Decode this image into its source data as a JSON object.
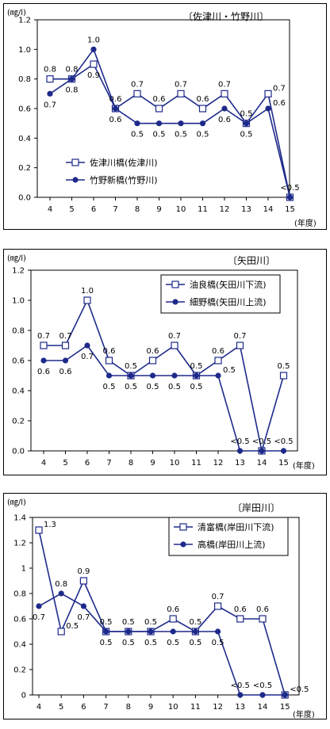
{
  "chart_data": [
    {
      "type": "line",
      "title": "〔佐津川・竹野川〕",
      "ylabel": "(㎎/l)",
      "xlabel": "(年度)",
      "categories": [
        "4",
        "5",
        "6",
        "7",
        "8",
        "9",
        "10",
        "11",
        "12",
        "13",
        "14",
        "15"
      ],
      "y_ticks": [
        "0.0",
        "0.2",
        "0.4",
        "0.6",
        "0.8",
        "1.0",
        "1.2"
      ],
      "ylim": [
        0,
        1.2
      ],
      "legend_position": "left-middle",
      "series": [
        {
          "name": "佐津川橋(佐津川)",
          "marker": "square-open",
          "values": [
            0.8,
            0.8,
            0.9,
            0.6,
            0.7,
            0.6,
            0.7,
            0.6,
            0.7,
            0.5,
            0.7,
            0.0
          ],
          "labels": [
            "0.8",
            "0.8",
            "0.9",
            "0.6",
            "0.7",
            "0.6",
            "0.7",
            "0.6",
            "0.7",
            "0.5",
            "0.7",
            ""
          ],
          "label_pos": [
            "above",
            "above",
            "below",
            "above",
            "above",
            "above",
            "above",
            "above",
            "above",
            "above",
            "right",
            ""
          ]
        },
        {
          "name": "竹野新橋(竹野川)",
          "marker": "circle-filled",
          "values": [
            0.7,
            0.8,
            1.0,
            0.6,
            0.5,
            0.5,
            0.5,
            0.5,
            0.6,
            0.5,
            0.6,
            0.0
          ],
          "labels": [
            "0.7",
            "0.8",
            "1.0",
            "0.6",
            "0.5",
            "0.5",
            "0.5",
            "0.5",
            "0.6",
            "0.5",
            "0.6",
            "<0.5"
          ],
          "label_pos": [
            "below",
            "below",
            "above",
            "below",
            "below",
            "below",
            "below",
            "below",
            "below",
            "below",
            "right",
            "above"
          ]
        }
      ]
    },
    {
      "type": "line",
      "title": "〔矢田川〕",
      "ylabel": "(㎎/l)",
      "xlabel": "(年度)",
      "categories": [
        "4",
        "5",
        "6",
        "7",
        "8",
        "9",
        "10",
        "11",
        "12",
        "13",
        "14",
        "15"
      ],
      "y_ticks": [
        "0.0",
        "0.2",
        "0.4",
        "0.6",
        "0.8",
        "1.0",
        "1.2"
      ],
      "ylim": [
        0,
        1.2
      ],
      "legend_position": "top-right",
      "series": [
        {
          "name": "油良橋(矢田川下流)",
          "marker": "square-open",
          "values": [
            0.7,
            0.7,
            1.0,
            0.6,
            0.5,
            0.6,
            0.7,
            0.5,
            0.6,
            0.7,
            0.0,
            0.5
          ],
          "labels": [
            "0.7",
            "0.7",
            "1.0",
            "0.6",
            "0.5",
            "0.6",
            "0.7",
            "0.5",
            "0.6",
            "0.7",
            "<0.5",
            "0.5"
          ],
          "label_pos": [
            "above",
            "above",
            "above",
            "above",
            "above",
            "above",
            "above",
            "above",
            "above",
            "above",
            "above",
            "above"
          ]
        },
        {
          "name": "細野橋(矢田川上流)",
          "marker": "circle-filled",
          "values": [
            0.6,
            0.6,
            0.7,
            0.5,
            0.5,
            0.5,
            0.5,
            0.5,
            0.5,
            0.0,
            0.0,
            0.0
          ],
          "labels": [
            "0.6",
            "0.6",
            "0.7",
            "0.5",
            "0.5",
            "0.5",
            "0.5",
            "0.5",
            "0.5",
            "<0.5",
            "",
            "<0.5"
          ],
          "label_pos": [
            "below",
            "below",
            "below",
            "below",
            "below",
            "below",
            "below",
            "below",
            "right",
            "above",
            "",
            "above"
          ]
        }
      ]
    },
    {
      "type": "line",
      "title": "〔岸田川〕",
      "ylabel": "(㎎/l)",
      "xlabel": "(年度)",
      "categories": [
        "4",
        "5",
        "6",
        "7",
        "8",
        "9",
        "10",
        "11",
        "12",
        "13",
        "14",
        "15"
      ],
      "y_ticks": [
        "0",
        "0.2",
        "0.4",
        "0.6",
        "0.8",
        "1",
        "1.2",
        "1.4"
      ],
      "ylim": [
        0,
        1.4
      ],
      "legend_position": "top-right",
      "series": [
        {
          "name": "清富橋(岸田川下流)",
          "marker": "square-open",
          "values": [
            1.3,
            0.5,
            0.9,
            0.5,
            0.5,
            0.5,
            0.6,
            0.5,
            0.7,
            0.6,
            0.6,
            0.0
          ],
          "labels": [
            "1.3",
            "0.5",
            "0.9",
            "0.5",
            "0.5",
            "0.5",
            "0.6",
            "0.5",
            "0.7",
            "0.6",
            "0.6",
            "<0.5"
          ],
          "label_pos": [
            "right",
            "right",
            "above",
            "above",
            "above",
            "above",
            "above",
            "above",
            "above",
            "above",
            "above",
            "right"
          ]
        },
        {
          "name": "高橋(岸田川上流)",
          "marker": "circle-filled",
          "values": [
            0.7,
            0.8,
            0.7,
            0.5,
            0.5,
            0.5,
            0.5,
            0.5,
            0.5,
            0.0,
            0.0,
            0.0
          ],
          "labels": [
            "0.7",
            "0.8",
            "0.7",
            "0.5",
            "0.5",
            "0.5",
            "0.5",
            "0.5",
            "0.5",
            "<0.5",
            "<0.5",
            ""
          ],
          "label_pos": [
            "below",
            "above",
            "below",
            "below",
            "below",
            "below",
            "below",
            "below",
            "below",
            "above",
            "above",
            ""
          ]
        }
      ]
    }
  ]
}
